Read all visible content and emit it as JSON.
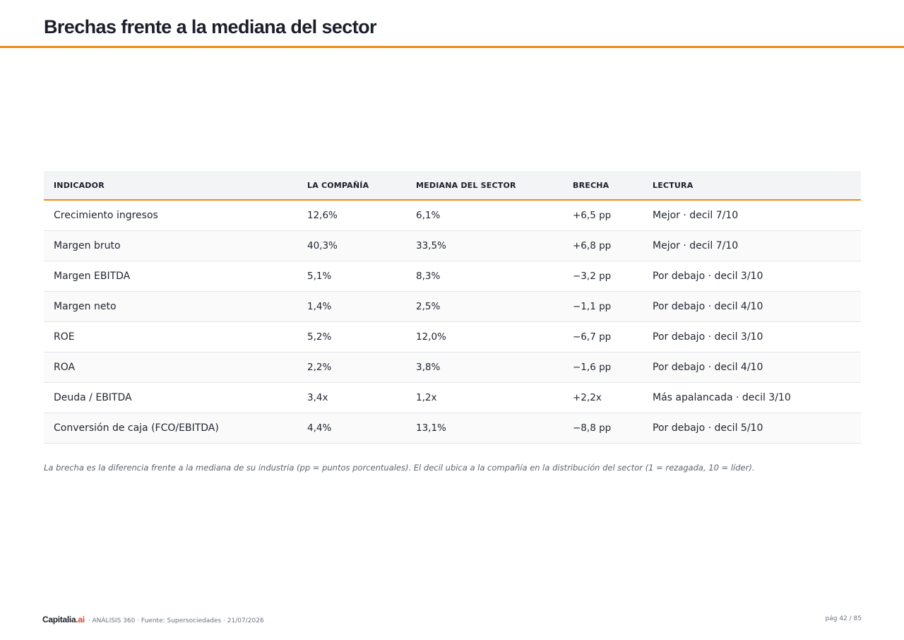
{
  "title": "Brechas frente a la mediana del sector",
  "table": {
    "columns": [
      "INDICADOR",
      "LA COMPAÑÍA",
      "MEDIANA DEL SECTOR",
      "BRECHA",
      "LECTURA"
    ],
    "rows": [
      [
        "Crecimiento ingresos",
        "12,6%",
        "6,1%",
        "+6,5 pp",
        "Mejor · decil 7/10"
      ],
      [
        "Margen bruto",
        "40,3%",
        "33,5%",
        "+6,8 pp",
        "Mejor · decil 7/10"
      ],
      [
        "Margen EBITDA",
        "5,1%",
        "8,3%",
        "−3,2 pp",
        "Por debajo · decil 3/10"
      ],
      [
        "Margen neto",
        "1,4%",
        "2,5%",
        "−1,1 pp",
        "Por debajo · decil 4/10"
      ],
      [
        "ROE",
        "5,2%",
        "12,0%",
        "−6,7 pp",
        "Por debajo · decil 3/10"
      ],
      [
        "ROA",
        "2,2%",
        "3,8%",
        "−1,6 pp",
        "Por debajo · decil 4/10"
      ],
      [
        "Deuda / EBITDA",
        "3,4x",
        "1,2x",
        "+2,2x",
        "Más apalancada · decil 3/10"
      ],
      [
        "Conversión de caja (FCO/EBITDA)",
        "4,4%",
        "13,1%",
        "−8,8 pp",
        "Por debajo · decil 5/10"
      ]
    ]
  },
  "note": "La brecha es la diferencia frente a la mediana de su industria (pp = puntos porcentuales). El decil ubica a la compañía en la distribución del sector (1 = rezagada, 10 = líder).",
  "footer": {
    "brand_main": "Capitalia",
    "brand_accent": ".ai",
    "meta": "· ANÁLISIS 360 · Fuente: Supersociedades · 21/07/2026",
    "page": "pág 42 / 85"
  },
  "colors": {
    "accent": "#f08a12",
    "brand_accent": "#e0421f"
  }
}
